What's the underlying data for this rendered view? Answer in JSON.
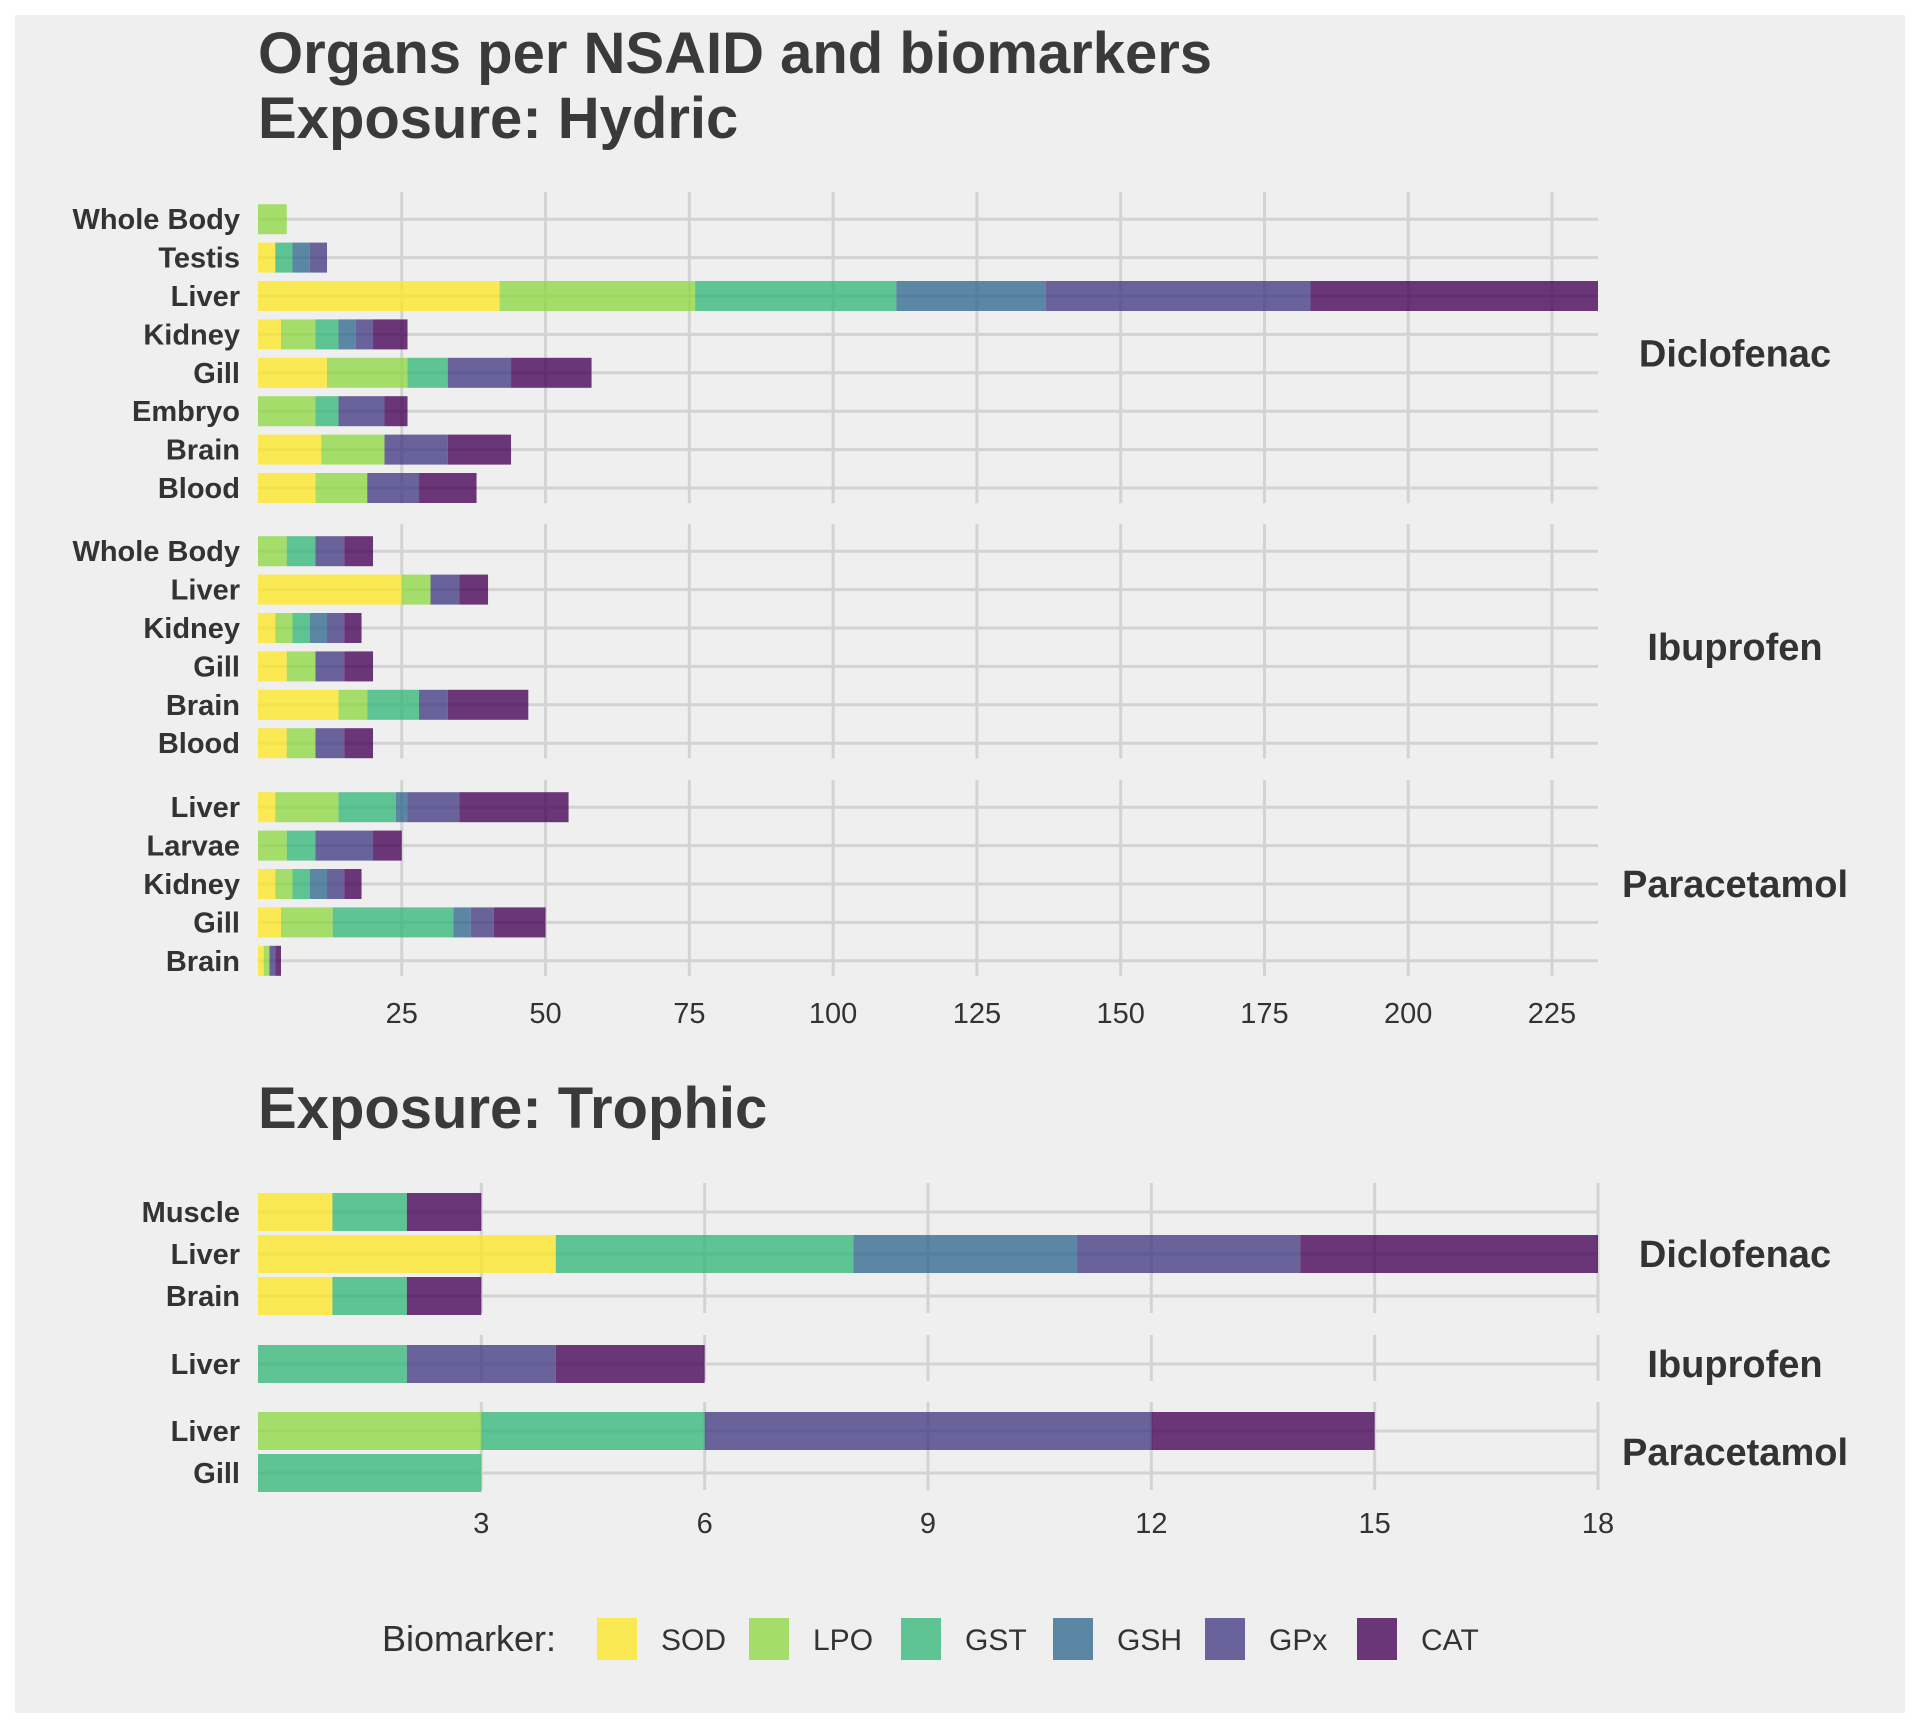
{
  "colors": {
    "background": "#efefef",
    "grid": "#d3d3d3",
    "SOD": "#fde725",
    "LPO": "#8fd744",
    "GST": "#35b779",
    "GSH": "#31688e",
    "GPx": "#443a83",
    "CAT": "#440154"
  },
  "biomarkers": [
    "SOD",
    "LPO",
    "GST",
    "GSH",
    "GPx",
    "CAT"
  ],
  "legend": {
    "title": "Biomarker:",
    "items": [
      "SOD",
      "LPO",
      "GST",
      "GSH",
      "GPx",
      "CAT"
    ]
  },
  "chart_data": [
    {
      "type": "bar",
      "orientation": "horizontal",
      "stacked": true,
      "title_lines": [
        "Organs per NSAID and biomarkers",
        "Exposure: Hydric"
      ],
      "xlim": [
        0,
        233
      ],
      "xticks": [
        25,
        50,
        75,
        100,
        125,
        150,
        175,
        200,
        225
      ],
      "grid": true,
      "facets": [
        {
          "label": "Diclofenac",
          "rows": [
            {
              "organ": "Whole Body",
              "segments": {
                "LPO": 5
              }
            },
            {
              "organ": "Testis",
              "segments": {
                "SOD": 3,
                "GST": 3,
                "GSH": 3,
                "GPx": 3
              }
            },
            {
              "organ": "Liver",
              "segments": {
                "SOD": 42,
                "LPO": 34,
                "GST": 35,
                "GSH": 26,
                "GPx": 46,
                "CAT": 50
              }
            },
            {
              "organ": "Kidney",
              "segments": {
                "SOD": 4,
                "LPO": 6,
                "GST": 4,
                "GSH": 3,
                "GPx": 3,
                "CAT": 6
              }
            },
            {
              "organ": "Gill",
              "segments": {
                "SOD": 12,
                "LPO": 14,
                "GST": 7,
                "GPx": 11,
                "CAT": 14
              }
            },
            {
              "organ": "Embryo",
              "segments": {
                "LPO": 10,
                "GST": 4,
                "GPx": 8,
                "CAT": 4
              }
            },
            {
              "organ": "Brain",
              "segments": {
                "SOD": 11,
                "LPO": 11,
                "GPx": 11,
                "CAT": 11
              }
            },
            {
              "organ": "Blood",
              "segments": {
                "SOD": 10,
                "LPO": 9,
                "GPx": 9,
                "CAT": 10
              }
            }
          ]
        },
        {
          "label": "Ibuprofen",
          "rows": [
            {
              "organ": "Whole Body",
              "segments": {
                "LPO": 5,
                "GST": 5,
                "GPx": 5,
                "CAT": 5
              }
            },
            {
              "organ": "Liver",
              "segments": {
                "SOD": 25,
                "LPO": 5,
                "GPx": 5,
                "CAT": 5
              }
            },
            {
              "organ": "Kidney",
              "segments": {
                "SOD": 3,
                "LPO": 3,
                "GST": 3,
                "GSH": 3,
                "GPx": 3,
                "CAT": 3
              }
            },
            {
              "organ": "Gill",
              "segments": {
                "SOD": 5,
                "LPO": 5,
                "GPx": 5,
                "CAT": 5
              }
            },
            {
              "organ": "Brain",
              "segments": {
                "SOD": 14,
                "LPO": 5,
                "GST": 9,
                "GPx": 5,
                "CAT": 14
              }
            },
            {
              "organ": "Blood",
              "segments": {
                "SOD": 5,
                "LPO": 5,
                "GPx": 5,
                "CAT": 5
              }
            }
          ]
        },
        {
          "label": "Paracetamol",
          "rows": [
            {
              "organ": "Liver",
              "segments": {
                "SOD": 3,
                "LPO": 11,
                "GST": 10,
                "GSH": 2,
                "GPx": 9,
                "CAT": 19
              }
            },
            {
              "organ": "Larvae",
              "segments": {
                "LPO": 5,
                "GST": 5,
                "GPx": 10,
                "CAT": 5
              }
            },
            {
              "organ": "Kidney",
              "segments": {
                "SOD": 3,
                "LPO": 3,
                "GST": 3,
                "GSH": 3,
                "GPx": 3,
                "CAT": 3
              }
            },
            {
              "organ": "Gill",
              "segments": {
                "SOD": 4,
                "LPO": 9,
                "GST": 21,
                "GSH": 3,
                "GPx": 4,
                "CAT": 9
              }
            },
            {
              "organ": "Brain",
              "segments": {
                "SOD": 1,
                "LPO": 1,
                "GPx": 1,
                "CAT": 1
              }
            }
          ]
        }
      ]
    },
    {
      "type": "bar",
      "orientation": "horizontal",
      "stacked": true,
      "title_lines": [
        "Exposure: Trophic"
      ],
      "xlim": [
        0,
        18
      ],
      "xticks": [
        3,
        6,
        9,
        12,
        15,
        18
      ],
      "grid": true,
      "facets": [
        {
          "label": "Diclofenac",
          "rows": [
            {
              "organ": "Muscle",
              "segments": {
                "SOD": 1,
                "GST": 1,
                "CAT": 1
              }
            },
            {
              "organ": "Liver",
              "segments": {
                "SOD": 4,
                "GST": 4,
                "GSH": 3,
                "GPx": 3,
                "CAT": 4
              }
            },
            {
              "organ": "Brain",
              "segments": {
                "SOD": 1,
                "GST": 1,
                "CAT": 1
              }
            }
          ]
        },
        {
          "label": "Ibuprofen",
          "rows": [
            {
              "organ": "Liver",
              "segments": {
                "GST": 2,
                "GPx": 2,
                "CAT": 2
              }
            }
          ]
        },
        {
          "label": "Paracetamol",
          "rows": [
            {
              "organ": "Liver",
              "segments": {
                "LPO": 3,
                "GST": 3,
                "GPx": 6,
                "CAT": 3
              }
            },
            {
              "organ": "Gill",
              "segments": {
                "GST": 3
              }
            }
          ]
        }
      ]
    }
  ]
}
